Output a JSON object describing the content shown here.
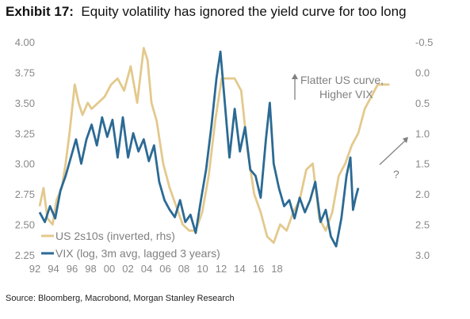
{
  "exhibit_label": "Exhibit 17:",
  "title": "Equity volatility has ignored the yield curve for too long",
  "source": "Source: Bloomberg, Macrobond, Morgan Stanley Research",
  "colors": {
    "us2s10s": "#E3C98D",
    "vix": "#2B6A94",
    "ticks": "#888888",
    "annotation": "#808080"
  },
  "annotations": {
    "line1": "Flatter US curve,",
    "line2": "Higher VIX",
    "question": "?"
  },
  "chart_data": {
    "type": "line",
    "title": "Equity volatility has ignored the yield curve for too long",
    "x_ticks": [
      "92",
      "94",
      "96",
      "98",
      "00",
      "02",
      "04",
      "06",
      "08",
      "10",
      "12",
      "14",
      "16",
      "18"
    ],
    "xlim": [
      1992,
      2019
    ],
    "left_axis": {
      "ticks": [
        "2.25",
        "2.50",
        "2.75",
        "3.00",
        "3.25",
        "3.50",
        "3.75",
        "4.00"
      ],
      "ylim": [
        2.25,
        4.0
      ]
    },
    "right_axis": {
      "ticks": [
        "3.0",
        "2.5",
        "2.0",
        "1.5",
        "1.0",
        "0.5",
        "0.0",
        "-0.5"
      ],
      "ylim": [
        3.0,
        -0.5
      ],
      "inverted": true
    },
    "series": [
      {
        "name": "US 2s10s (inverted, rhs)",
        "axis": "right",
        "points": [
          [
            1992.0,
            2.2
          ],
          [
            1992.3,
            1.9
          ],
          [
            1992.6,
            2.4
          ],
          [
            1993.0,
            2.5
          ],
          [
            1993.3,
            2.1
          ],
          [
            1993.7,
            1.9
          ],
          [
            1994.0,
            1.5
          ],
          [
            1994.3,
            1.0
          ],
          [
            1994.7,
            0.2
          ],
          [
            1995.0,
            0.5
          ],
          [
            1995.3,
            0.7
          ],
          [
            1995.7,
            0.5
          ],
          [
            1996.0,
            0.6
          ],
          [
            1996.5,
            0.5
          ],
          [
            1997.0,
            0.4
          ],
          [
            1997.5,
            0.2
          ],
          [
            1998.0,
            0.1
          ],
          [
            1998.5,
            0.3
          ],
          [
            1999.0,
            -0.1
          ],
          [
            1999.5,
            0.5
          ],
          [
            2000.0,
            -0.4
          ],
          [
            2000.3,
            -0.2
          ],
          [
            2000.6,
            0.5
          ],
          [
            2001.0,
            0.8
          ],
          [
            2001.5,
            1.5
          ],
          [
            2002.0,
            1.9
          ],
          [
            2002.5,
            2.2
          ],
          [
            2003.0,
            2.5
          ],
          [
            2003.5,
            2.6
          ],
          [
            2004.0,
            2.6
          ],
          [
            2004.5,
            2.3
          ],
          [
            2005.0,
            1.7
          ],
          [
            2005.5,
            0.8
          ],
          [
            2006.0,
            0.1
          ],
          [
            2006.5,
            0.1
          ],
          [
            2007.0,
            0.1
          ],
          [
            2007.5,
            0.3
          ],
          [
            2008.0,
            1.3
          ],
          [
            2008.5,
            2.0
          ],
          [
            2009.0,
            2.3
          ],
          [
            2009.5,
            2.7
          ],
          [
            2010.0,
            2.8
          ],
          [
            2010.5,
            2.5
          ],
          [
            2011.0,
            2.6
          ],
          [
            2011.5,
            2.3
          ],
          [
            2012.0,
            2.1
          ],
          [
            2012.5,
            1.6
          ],
          [
            2013.0,
            1.5
          ],
          [
            2013.5,
            2.4
          ],
          [
            2014.0,
            2.6
          ],
          [
            2014.5,
            2.3
          ],
          [
            2015.0,
            1.7
          ],
          [
            2015.5,
            1.5
          ],
          [
            2016.0,
            1.2
          ],
          [
            2016.5,
            1.0
          ],
          [
            2017.0,
            0.6
          ],
          [
            2017.5,
            0.4
          ],
          [
            2018.0,
            0.2
          ],
          [
            2018.5,
            0.2
          ],
          [
            2018.9,
            0.2
          ]
        ]
      },
      {
        "name": "VIX (log, 3m avg, lagged 3 years)",
        "axis": "left",
        "points": [
          [
            1992.0,
            2.6
          ],
          [
            1992.4,
            2.52
          ],
          [
            1992.8,
            2.65
          ],
          [
            1993.2,
            2.55
          ],
          [
            1993.6,
            2.78
          ],
          [
            1994.0,
            2.9
          ],
          [
            1994.4,
            3.05
          ],
          [
            1994.8,
            3.2
          ],
          [
            1995.2,
            3.0
          ],
          [
            1995.6,
            3.2
          ],
          [
            1996.0,
            3.32
          ],
          [
            1996.4,
            3.15
          ],
          [
            1996.8,
            3.38
          ],
          [
            1997.2,
            3.22
          ],
          [
            1997.6,
            3.36
          ],
          [
            1998.0,
            3.05
          ],
          [
            1998.4,
            3.38
          ],
          [
            1998.8,
            3.05
          ],
          [
            1999.2,
            3.25
          ],
          [
            1999.6,
            3.1
          ],
          [
            2000.0,
            3.2
          ],
          [
            2000.4,
            3.02
          ],
          [
            2000.8,
            3.15
          ],
          [
            2001.2,
            2.85
          ],
          [
            2001.6,
            2.7
          ],
          [
            2002.0,
            2.62
          ],
          [
            2002.4,
            2.56
          ],
          [
            2002.8,
            2.7
          ],
          [
            2003.2,
            2.52
          ],
          [
            2003.6,
            2.58
          ],
          [
            2004.0,
            2.43
          ],
          [
            2004.4,
            2.7
          ],
          [
            2004.8,
            2.95
          ],
          [
            2005.2,
            3.3
          ],
          [
            2005.6,
            3.7
          ],
          [
            2005.9,
            3.92
          ],
          [
            2006.2,
            3.55
          ],
          [
            2006.6,
            3.05
          ],
          [
            2007.0,
            3.45
          ],
          [
            2007.4,
            3.1
          ],
          [
            2007.8,
            3.3
          ],
          [
            2008.2,
            2.95
          ],
          [
            2008.6,
            2.9
          ],
          [
            2009.0,
            2.72
          ],
          [
            2009.4,
            3.2
          ],
          [
            2009.7,
            3.5
          ],
          [
            2010.0,
            3.0
          ],
          [
            2010.4,
            2.8
          ],
          [
            2010.8,
            2.65
          ],
          [
            2011.2,
            2.7
          ],
          [
            2011.6,
            2.55
          ],
          [
            2012.0,
            2.72
          ],
          [
            2012.4,
            2.6
          ],
          [
            2012.8,
            2.7
          ],
          [
            2013.2,
            2.85
          ],
          [
            2013.6,
            2.52
          ],
          [
            2014.0,
            2.62
          ],
          [
            2014.4,
            2.4
          ],
          [
            2014.8,
            2.32
          ],
          [
            2015.2,
            2.55
          ],
          [
            2015.6,
            2.9
          ],
          [
            2015.9,
            3.05
          ],
          [
            2016.1,
            2.62
          ],
          [
            2016.3,
            2.72
          ],
          [
            2016.5,
            2.8
          ]
        ]
      }
    ]
  }
}
